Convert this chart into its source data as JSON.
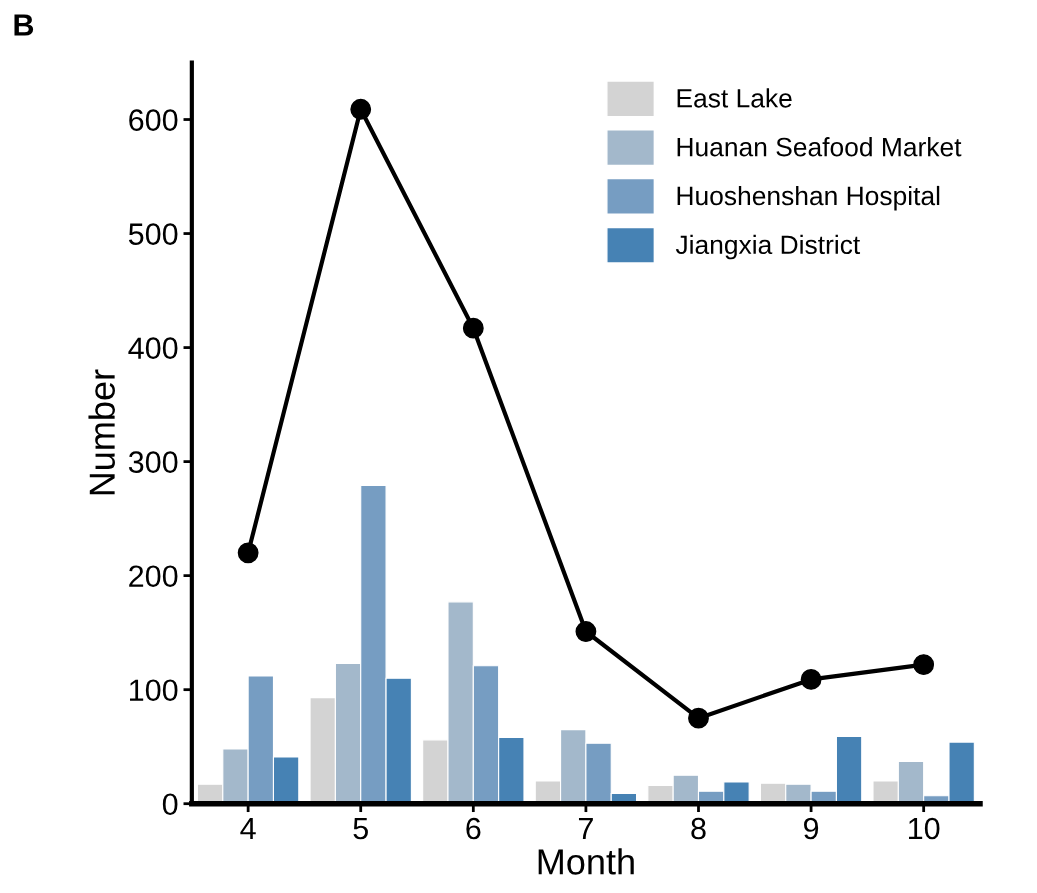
{
  "chart_data": {
    "type": "bar",
    "title": "B",
    "xlabel": "Month",
    "ylabel": "Number",
    "categories": [
      "4",
      "5",
      "6",
      "7",
      "8",
      "9",
      "10"
    ],
    "series": [
      {
        "name": "East Lake",
        "color": "#d3d3d3",
        "values": [
          17,
          93,
          56,
          20,
          16,
          18,
          20
        ]
      },
      {
        "name": "Huanan Seafood Market",
        "color": "#a3b8cb",
        "values": [
          48,
          123,
          177,
          65,
          25,
          17,
          37
        ]
      },
      {
        "name": "Huoshenshan Hospital",
        "color": "#769dc2",
        "values": [
          112,
          279,
          121,
          53,
          11,
          11,
          7
        ]
      },
      {
        "name": "Jiangxia District",
        "color": "#4682b4",
        "values": [
          41,
          110,
          58,
          9,
          19,
          59,
          54
        ]
      },
      {
        "type": "line",
        "color": "#000000",
        "marker": "circle",
        "values": [
          220,
          609,
          417,
          151,
          75,
          109,
          122
        ]
      }
    ],
    "ylim": [
      0,
      650
    ],
    "yticks": [
      0,
      100,
      200,
      300,
      400,
      500,
      600
    ],
    "grid": false,
    "legend": "top right"
  }
}
